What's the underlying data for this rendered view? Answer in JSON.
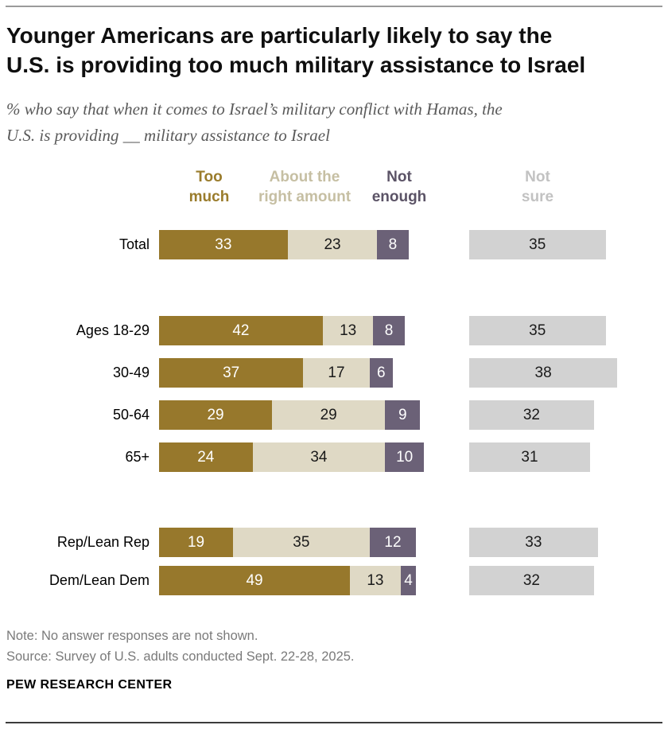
{
  "title_lines": [
    "Younger Americans are particularly likely to say the",
    "U.S. is providing too much military assistance to Israel"
  ],
  "subtitle_lines": [
    "% who say that when it comes to Israel’s military conflict with Hamas, the",
    "U.S. is providing __ military assistance to Israel"
  ],
  "legend": [
    {
      "label": "Too much",
      "text_color": "#9a7c2c"
    },
    {
      "label": "About the right amount",
      "text_color": "#c6bfa3"
    },
    {
      "label": "Not enough",
      "text_color": "#5b5366"
    },
    {
      "label": "Not sure",
      "text_color": "#c2c2c2"
    }
  ],
  "chart_data": {
    "type": "bar",
    "stacked": true,
    "orientation": "horizontal",
    "unit": "%",
    "xlim": [
      0,
      100
    ],
    "axis_hidden": true,
    "categories": [
      "Total",
      "Ages 18-29",
      "30-49",
      "50-64",
      "65+",
      "Rep/Lean Rep",
      "Dem/Lean Dem"
    ],
    "series": [
      {
        "name": "Too much",
        "color": "#97782c",
        "label_color": "#ffffff",
        "values": [
          33,
          42,
          37,
          29,
          24,
          19,
          49
        ]
      },
      {
        "name": "About the right amount",
        "color": "#dfd9c5",
        "label_color": "#1a1a1a",
        "values": [
          23,
          13,
          17,
          29,
          34,
          35,
          13
        ]
      },
      {
        "name": "Not enough",
        "color": "#6b6177",
        "label_color": "#ffffff",
        "values": [
          8,
          8,
          6,
          9,
          10,
          12,
          4
        ]
      },
      {
        "name": "Not sure",
        "color": "#d2d2d2",
        "label_color": "#1a1a1a",
        "values": [
          35,
          35,
          38,
          32,
          31,
          33,
          32
        ]
      }
    ]
  },
  "note": "Note: No answer responses are not shown.",
  "source": "Source: Survey of U.S. adults conducted Sept. 22-28, 2025.",
  "brand": "PEW RESEARCH CENTER"
}
